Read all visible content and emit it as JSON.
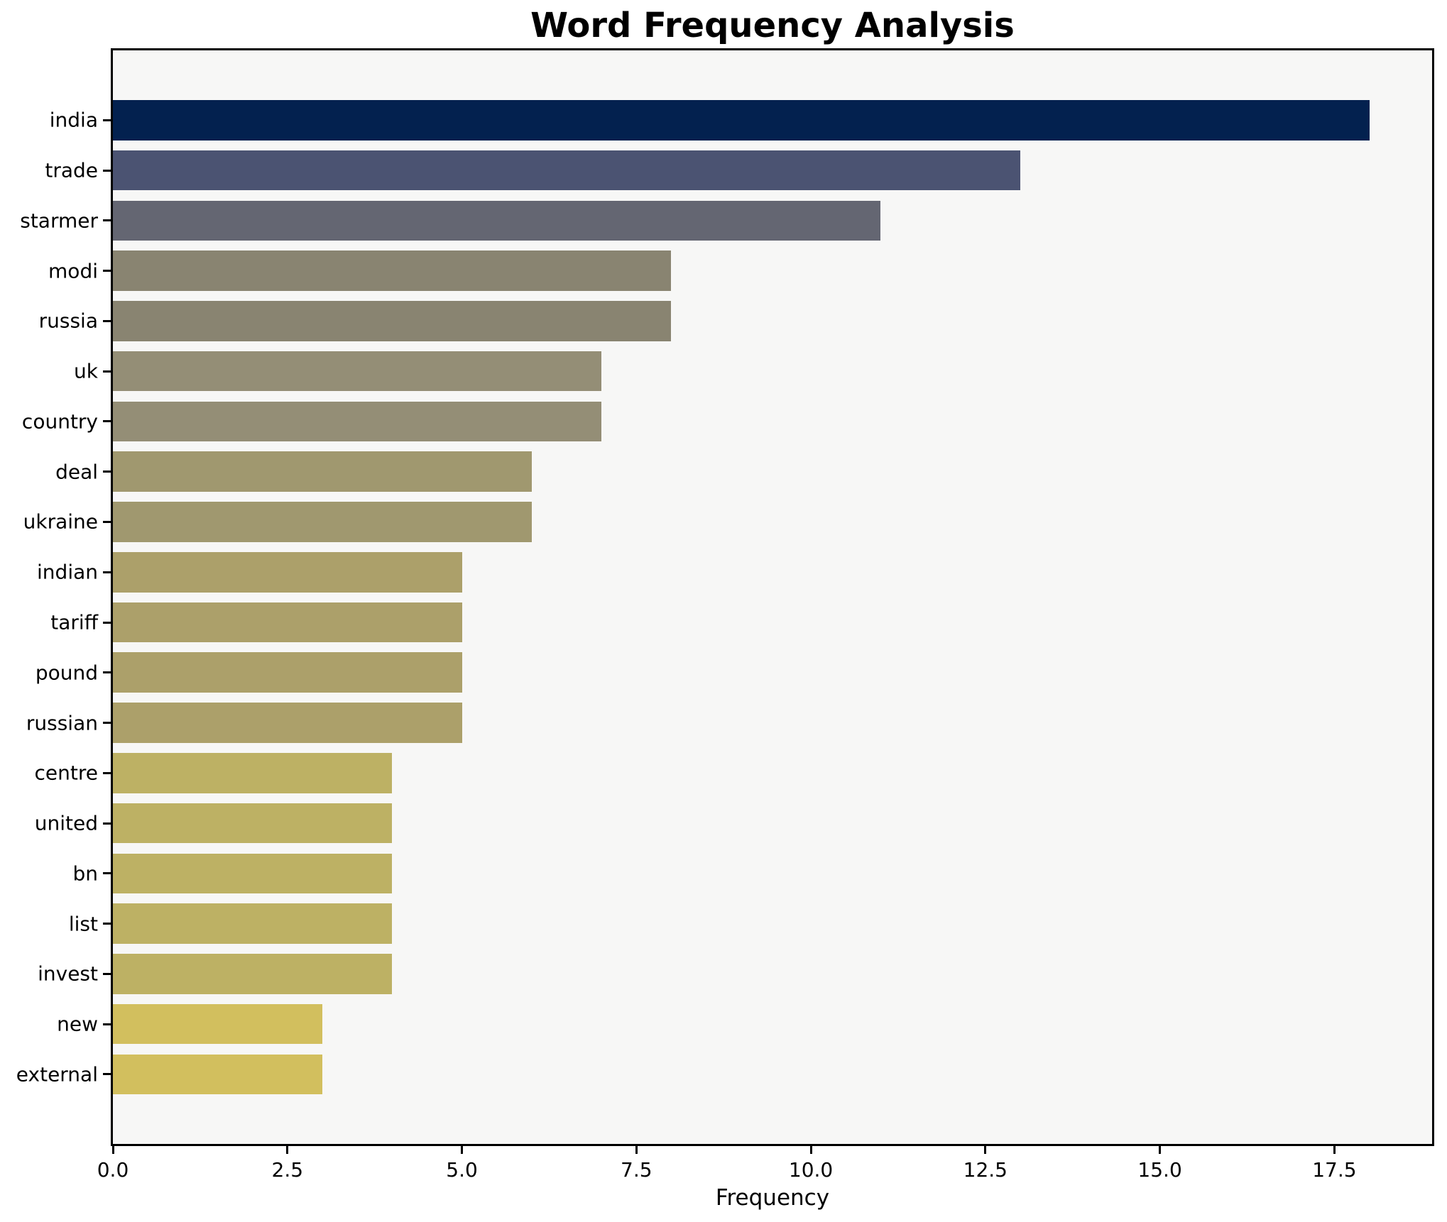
{
  "title": "Word Frequency Analysis",
  "chart_data": {
    "type": "bar",
    "orientation": "horizontal",
    "title": "Word Frequency Analysis",
    "xlabel": "Frequency",
    "ylabel": "",
    "categories": [
      "india",
      "trade",
      "starmer",
      "modi",
      "russia",
      "uk",
      "country",
      "deal",
      "ukraine",
      "indian",
      "tariff",
      "pound",
      "russian",
      "centre",
      "united",
      "bn",
      "list",
      "invest",
      "new",
      "external"
    ],
    "values": [
      18,
      13,
      11,
      8,
      8,
      7,
      7,
      6,
      6,
      5,
      5,
      5,
      5,
      4,
      4,
      4,
      4,
      4,
      3,
      3
    ],
    "bar_colors": [
      "#03214f",
      "#4b5372",
      "#646672",
      "#898471",
      "#898471",
      "#948e76",
      "#948e76",
      "#a0986f",
      "#a0986f",
      "#aca06a",
      "#aca06a",
      "#aca06a",
      "#aca06a",
      "#bdb164",
      "#bdb164",
      "#bdb164",
      "#bdb164",
      "#bdb164",
      "#d2bf5e",
      "#d2bf5e"
    ],
    "xlim": [
      0,
      18.9
    ],
    "x_ticks": [
      0.0,
      2.5,
      5.0,
      7.5,
      10.0,
      12.5,
      15.0,
      17.5
    ],
    "x_tick_labels": [
      "0.0",
      "2.5",
      "5.0",
      "7.5",
      "10.0",
      "12.5",
      "15.0",
      "17.5"
    ],
    "grid": false,
    "legend": false,
    "plot_bg": "#f7f7f6",
    "fig_bg": "#ffffff",
    "spine_color": "#000000"
  }
}
